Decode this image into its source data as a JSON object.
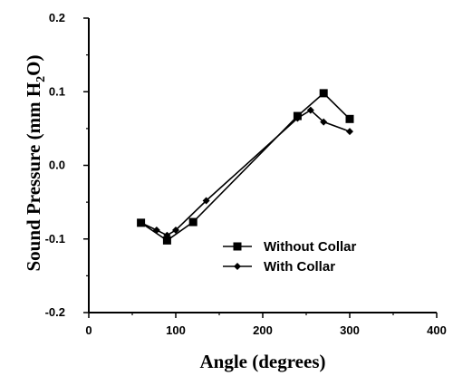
{
  "chart_data": {
    "type": "line",
    "xlabel": "Angle (degrees)",
    "ylabel_main": "Sound Pressure (mm H",
    "ylabel_sub": "2",
    "ylabel_end": "O)",
    "xlim": [
      0,
      400
    ],
    "ylim": [
      -0.2,
      0.2
    ],
    "x_ticks": [
      0,
      100,
      200,
      300,
      400
    ],
    "x_tick_labels": [
      "0",
      "100",
      "200",
      "300",
      "400"
    ],
    "y_ticks": [
      -0.2,
      -0.1,
      0.0,
      0.1,
      0.2
    ],
    "y_tick_labels": [
      "-0.2",
      "-0.1",
      "0.0",
      "0.1",
      "0.2"
    ],
    "grid": false,
    "legend_position": "bottom-right",
    "series": [
      {
        "name": "Without Collar",
        "marker": "square",
        "color": "#000000",
        "x": [
          60,
          90,
          120,
          240,
          270,
          300
        ],
        "y": [
          -0.078,
          -0.102,
          -0.077,
          0.067,
          0.098,
          0.063
        ]
      },
      {
        "name": "With Collar",
        "marker": "diamond",
        "color": "#000000",
        "x": [
          60,
          78,
          90,
          100,
          135,
          240,
          255,
          270,
          300
        ],
        "y": [
          -0.078,
          -0.088,
          -0.095,
          -0.088,
          -0.048,
          0.064,
          0.075,
          0.059,
          0.046
        ]
      }
    ]
  }
}
